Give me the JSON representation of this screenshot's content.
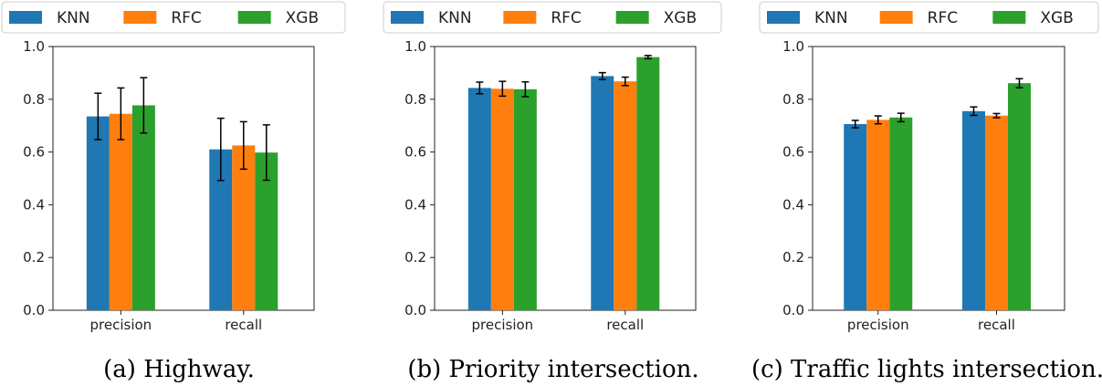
{
  "chart_data": [
    {
      "type": "bar",
      "categories": [
        "precision",
        "recall"
      ],
      "series": [
        {
          "name": "KNN",
          "values": [
            0.735,
            0.61
          ],
          "errors": [
            0.088,
            0.118
          ]
        },
        {
          "name": "RFC",
          "values": [
            0.745,
            0.625
          ],
          "errors": [
            0.098,
            0.09
          ]
        },
        {
          "name": "XGB",
          "values": [
            0.777,
            0.598
          ],
          "errors": [
            0.105,
            0.105
          ]
        }
      ],
      "title": "",
      "xlabel": "",
      "ylabel": "",
      "ylim": [
        0,
        1.0
      ],
      "yticks": [
        "0.0",
        "0.2",
        "0.4",
        "0.6",
        "0.8",
        "1.0"
      ],
      "caption": "(a) Highway.",
      "legend": "top"
    },
    {
      "type": "bar",
      "categories": [
        "precision",
        "recall"
      ],
      "series": [
        {
          "name": "KNN",
          "values": [
            0.843,
            0.888
          ],
          "errors": [
            0.022,
            0.013
          ]
        },
        {
          "name": "RFC",
          "values": [
            0.84,
            0.868
          ],
          "errors": [
            0.028,
            0.016
          ]
        },
        {
          "name": "XGB",
          "values": [
            0.838,
            0.96
          ],
          "errors": [
            0.028,
            0.006
          ]
        }
      ],
      "title": "",
      "xlabel": "",
      "ylabel": "",
      "ylim": [
        0,
        1.0
      ],
      "yticks": [
        "0.0",
        "0.2",
        "0.4",
        "0.6",
        "0.8",
        "1.0"
      ],
      "caption": "(b) Priority intersection.",
      "legend": "top"
    },
    {
      "type": "bar",
      "categories": [
        "precision",
        "recall"
      ],
      "series": [
        {
          "name": "KNN",
          "values": [
            0.706,
            0.755
          ],
          "errors": [
            0.014,
            0.016
          ]
        },
        {
          "name": "RFC",
          "values": [
            0.722,
            0.738
          ],
          "errors": [
            0.015,
            0.008
          ]
        },
        {
          "name": "XGB",
          "values": [
            0.731,
            0.861
          ],
          "errors": [
            0.016,
            0.017
          ]
        }
      ],
      "title": "",
      "xlabel": "",
      "ylabel": "",
      "ylim": [
        0,
        1.0
      ],
      "yticks": [
        "0.0",
        "0.2",
        "0.4",
        "0.6",
        "0.8",
        "1.0"
      ],
      "caption": "(c) Traffic lights intersection.",
      "legend": "top"
    }
  ],
  "colors": {
    "KNN": "#1f77b4",
    "RFC": "#ff7f0e",
    "XGB": "#2ca02c"
  }
}
